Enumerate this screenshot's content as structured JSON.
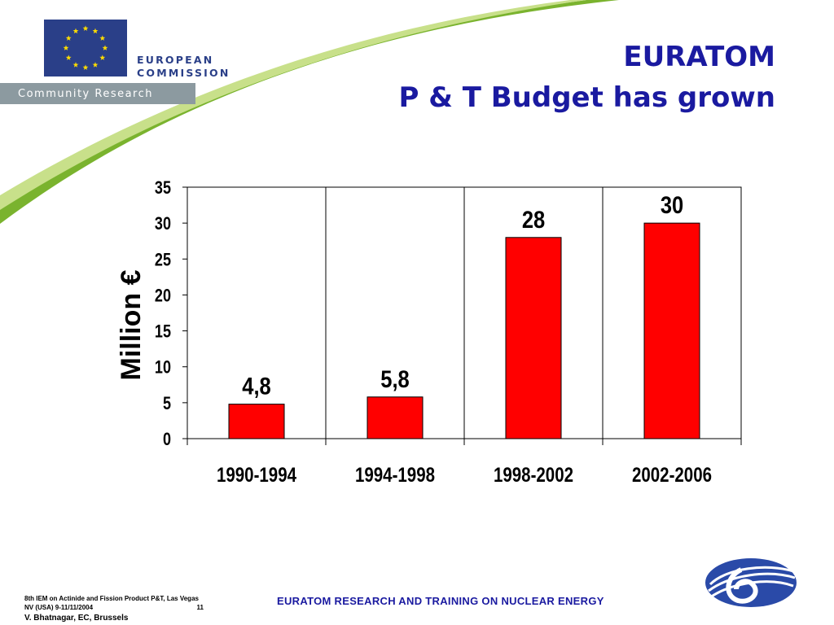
{
  "header": {
    "org_line1": "EUROPEAN",
    "org_line2": "COMMISSION",
    "community_label": "Community Research",
    "title_line1": "EURATOM",
    "title_line2": "P & T Budget has grown"
  },
  "chart_data": {
    "type": "bar",
    "categories": [
      "1990-1994",
      "1994-1998",
      "1998-2002",
      "2002-2006"
    ],
    "values": [
      4.8,
      5.8,
      28,
      30
    ],
    "data_labels": [
      "4,8",
      "5,8",
      "28",
      "30"
    ],
    "ylabel": "Million €",
    "xlabel": "",
    "ylim": [
      0,
      35
    ],
    "yticks": [
      0,
      5,
      10,
      15,
      20,
      25,
      30,
      35
    ],
    "grid": "vertical category separators",
    "legend": "none",
    "bar_color": "#ff0000"
  },
  "footer": {
    "conference_line1": "8th IEM on Actinide and Fission Product P&T, Las Vegas",
    "conference_line2": "NV (USA) 9-11/11/2004",
    "page_number": "11",
    "author": "V. Bhatnagar, EC, Brussels",
    "program": "EURATOM RESEARCH AND TRAINING ON NUCLEAR ENERGY"
  },
  "colors": {
    "title_blue": "#1a1aa0",
    "eu_blue": "#2a3f88",
    "eu_star": "#ffdd00",
    "swoosh_green": "#7ab32e",
    "community_bar": "#8c9aa0"
  }
}
